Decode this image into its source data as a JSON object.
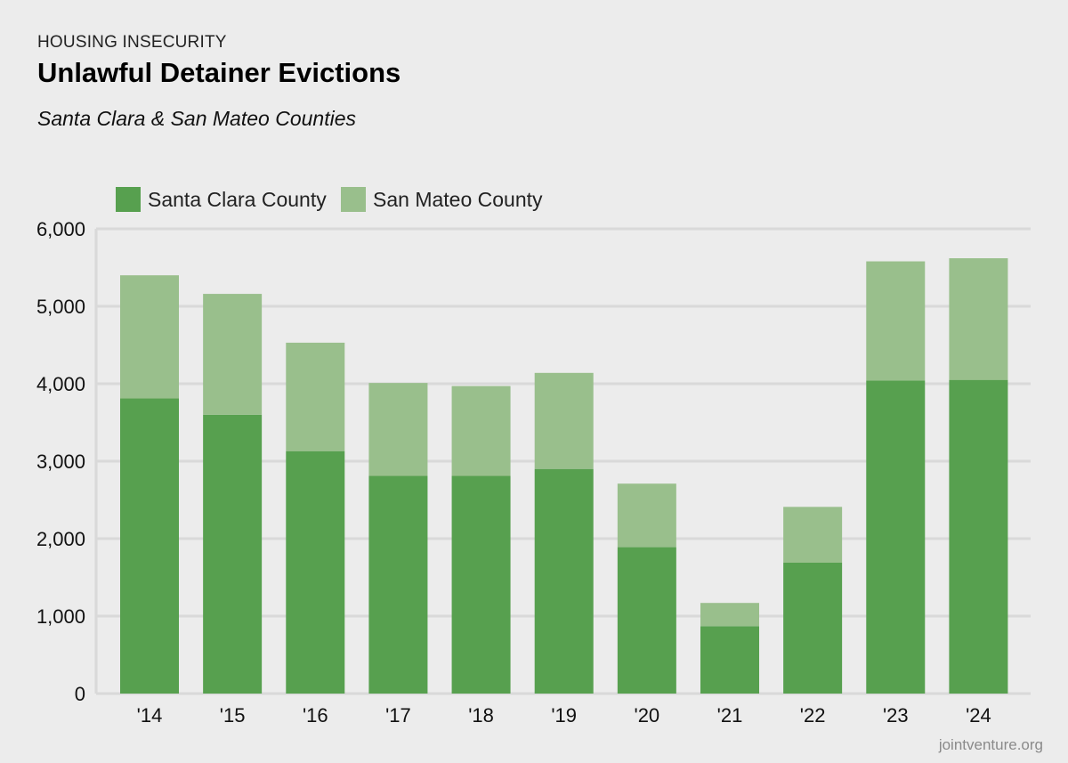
{
  "header": {
    "eyebrow": "HOUSING INSECURITY",
    "title": "Unlawful Detainer Evictions",
    "subtitle": "Santa Clara & San Mateo Counties"
  },
  "footer": {
    "source": "jointventure.org"
  },
  "colors": {
    "santa_clara": "#57a04f",
    "san_mateo": "#99bf8c",
    "grid": "#d9d9d9",
    "background": "#ececec"
  },
  "chart_data": {
    "type": "bar",
    "stacked": true,
    "title": "Unlawful Detainer Evictions",
    "subtitle": "Santa Clara & San Mateo Counties",
    "xlabel": "",
    "ylabel": "",
    "ylim": [
      0,
      6000
    ],
    "yticks": [
      0,
      1000,
      2000,
      3000,
      4000,
      5000,
      6000
    ],
    "ytick_labels": [
      "0",
      "1,000",
      "2,000",
      "3,000",
      "4,000",
      "5,000",
      "6,000"
    ],
    "grid": true,
    "legend_position": "top-left",
    "categories": [
      "'14",
      "'15",
      "'16",
      "'17",
      "'18",
      "'19",
      "'20",
      "'21",
      "'22",
      "'23",
      "'24"
    ],
    "series": [
      {
        "name": "Santa Clara County",
        "color": "#57a04f",
        "values": [
          3810,
          3600,
          3130,
          2810,
          2810,
          2900,
          1890,
          870,
          1690,
          4040,
          4050
        ]
      },
      {
        "name": "San Mateo County",
        "color": "#99bf8c",
        "values": [
          1590,
          1560,
          1400,
          1200,
          1160,
          1240,
          820,
          300,
          720,
          1540,
          1570
        ]
      }
    ]
  }
}
